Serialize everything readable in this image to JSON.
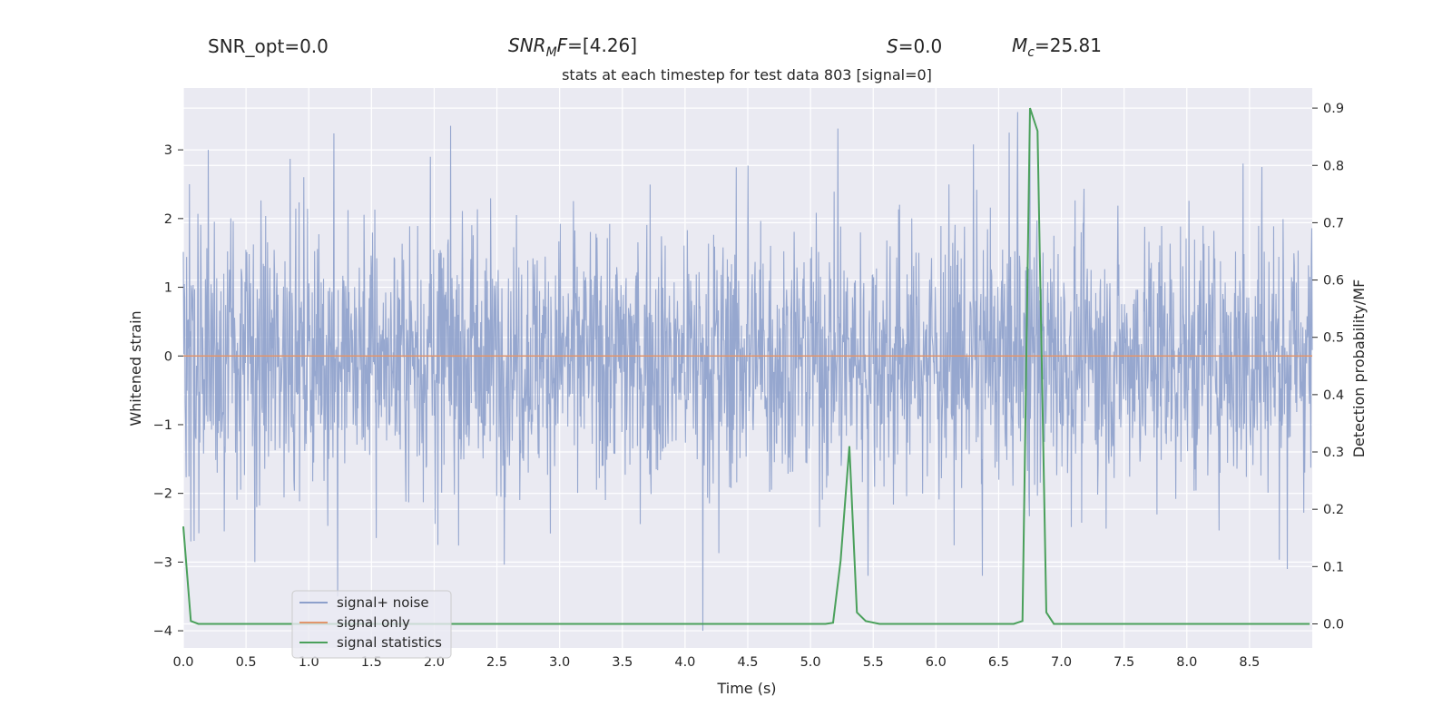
{
  "header": {
    "snr_opt": "SNR_opt=0.0",
    "snr_mf_main": "SNR",
    "snr_mf_sub": "M",
    "snr_mf_rest": "F",
    "snr_mf_value": "=[4.26]",
    "s_symbol": "S",
    "s_value": "=0.0",
    "mc_symbol": "M",
    "mc_sub": "c",
    "mc_value": "=25.81"
  },
  "chart_data": {
    "type": "line",
    "title": "stats at each timestep for test data 803 [signal=0]",
    "xlabel": "Time (s)",
    "ylabel_left": "Whitened strain",
    "ylabel_right": "Detection probability/MF",
    "xlim": [
      0.0,
      9.0
    ],
    "ylim_left": [
      -4.25,
      3.9
    ],
    "ylim_right": [
      -0.042,
      0.935
    ],
    "x_ticks": [
      "0.0",
      "0.5",
      "1.0",
      "1.5",
      "2.0",
      "2.5",
      "3.0",
      "3.5",
      "4.0",
      "4.5",
      "5.0",
      "5.5",
      "6.0",
      "6.5",
      "7.0",
      "7.5",
      "8.0",
      "8.5"
    ],
    "y_ticks_left": [
      "3",
      "2",
      "1",
      "0",
      "−1",
      "−2",
      "−3",
      "−4"
    ],
    "y_ticks_right": [
      "0.9",
      "0.8",
      "0.7",
      "0.6",
      "0.5",
      "0.4",
      "0.3",
      "0.2",
      "0.1",
      "0.0"
    ],
    "grid": true,
    "legend_position": "lower-left",
    "series": [
      {
        "name": "signal+ noise",
        "color": "#8da0cb",
        "axis": "left",
        "note_style": "dense noise",
        "range": [
          -4.0,
          3.56
        ],
        "peaks": [
          [
            0.05,
            2.5
          ],
          [
            0.2,
            3.0
          ],
          [
            0.85,
            2.87
          ],
          [
            1.2,
            3.24
          ],
          [
            1.97,
            2.9
          ],
          [
            2.13,
            3.35
          ],
          [
            4.5,
            2.77
          ],
          [
            5.22,
            3.31
          ],
          [
            6.3,
            3.08
          ],
          [
            6.65,
            3.55
          ],
          [
            6.75,
            3.56
          ],
          [
            8.45,
            2.8
          ],
          [
            8.6,
            2.75
          ]
        ],
        "troughs": [
          [
            0.06,
            -2.7
          ],
          [
            0.57,
            -3.0
          ],
          [
            1.23,
            -3.5
          ],
          [
            1.54,
            -2.65
          ],
          [
            2.03,
            -2.75
          ],
          [
            4.14,
            -4.0
          ],
          [
            4.27,
            -2.87
          ],
          [
            5.46,
            -3.2
          ],
          [
            6.37,
            -3.2
          ],
          [
            8.8,
            -3.1
          ]
        ]
      },
      {
        "name": "signal only",
        "color": "#e1956c",
        "axis": "left",
        "x": [
          0.0,
          9.0
        ],
        "y": [
          0.0,
          0.0
        ]
      },
      {
        "name": "signal statistics",
        "color": "#4aa05b",
        "axis": "right",
        "x": [
          0.0,
          0.06,
          0.12,
          0.2,
          5.12,
          5.18,
          5.24,
          5.31,
          5.37,
          5.44,
          5.55,
          6.62,
          6.69,
          6.75,
          6.81,
          6.88,
          6.94,
          7.0,
          8.98
        ],
        "y": [
          0.17,
          0.005,
          0.0,
          0.0,
          0.0,
          0.002,
          0.11,
          0.31,
          0.02,
          0.005,
          0.0,
          0.0,
          0.005,
          0.9,
          0.86,
          0.02,
          0.0,
          0.0,
          0.0
        ]
      }
    ]
  }
}
